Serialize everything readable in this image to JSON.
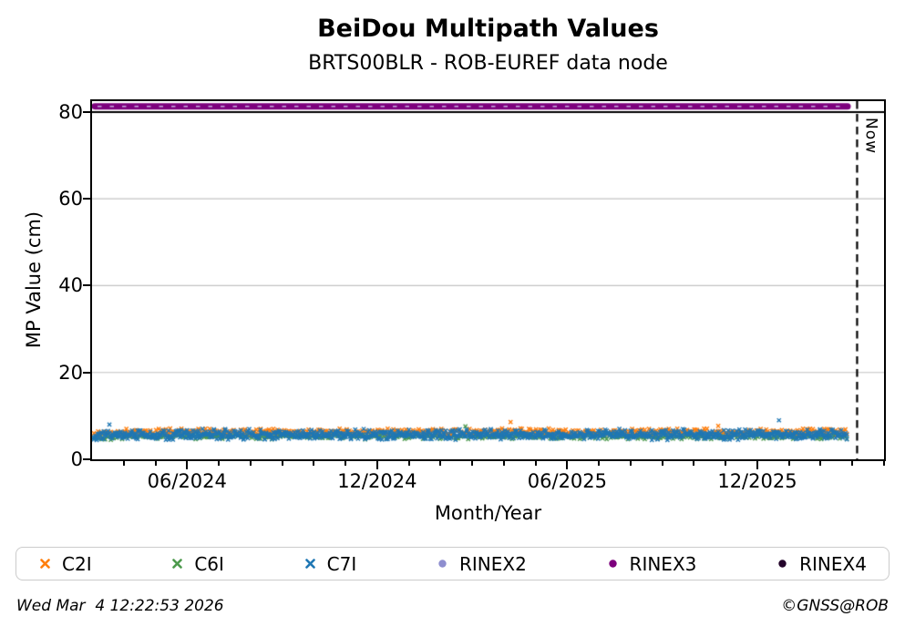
{
  "chart_data": {
    "type": "scatter",
    "title": "BeiDou Multipath Values",
    "subtitle": "BRTS00BLR - ROB-EUREF data node",
    "xlabel": "Month/Year",
    "ylabel": "MP Value (cm)",
    "ylim": [
      0,
      82.5
    ],
    "grid": "horizontal-only",
    "grid_color": "#c3c3c3",
    "grid_y_values": [
      20,
      40,
      60
    ],
    "y_ticks": [
      0,
      20,
      40,
      60,
      80
    ],
    "x_axis": {
      "months_span": 25,
      "start": "03/2024",
      "minor_tick_every_months": 1,
      "major_ticks": [
        {
          "month": 3,
          "label": "06/2024"
        },
        {
          "month": 9,
          "label": "12/2024"
        },
        {
          "month": 15,
          "label": "06/2025"
        },
        {
          "month": 21,
          "label": "12/2025"
        }
      ]
    },
    "separator_line": {
      "y": 80,
      "color": "#000000",
      "full_width": true
    },
    "now_marker": {
      "label": "Now",
      "month": 24.15,
      "style": "dashed",
      "color": "#000000"
    },
    "mp_series": [
      {
        "name": "C6I",
        "marker": "x",
        "color": "#4d9a4d",
        "center_cm": 5.3,
        "spread_cm": 0.45,
        "relative_density": 1,
        "start_month": 0,
        "end_month": 23.85
      },
      {
        "name": "C2I",
        "marker": "x",
        "color": "#ff7f0e",
        "center_cm": 6.35,
        "spread_cm": 0.5,
        "relative_density": 1,
        "start_month": 0,
        "end_month": 23.85
      },
      {
        "name": "C7I",
        "marker": "x",
        "color": "#1f77b4",
        "center_cm": 5.7,
        "spread_cm": 0.8,
        "relative_density": 2,
        "start_month": 0,
        "end_month": 23.85
      }
    ],
    "rinex_series": [
      {
        "name": "RINEX2",
        "marker": "circle",
        "color": "#8e8ecf",
        "level_cm": 81.3,
        "visible_as": "light dashes through RINEX3 band",
        "visible_dash_color": "#c5a9de"
      },
      {
        "name": "RINEX3",
        "marker": "circle",
        "color": "#7d007d",
        "level_cm": 81.3,
        "start_month": 0,
        "end_month": 23.85,
        "band_thickness_px": 7
      },
      {
        "name": "RINEX4",
        "marker": "circle",
        "color": "#24052b",
        "level_cm": null
      }
    ],
    "legend_order": [
      "C2I",
      "C6I",
      "C7I",
      "RINEX2",
      "RINEX3",
      "RINEX4"
    ]
  },
  "footer": {
    "timestamp": "Wed Mar  4 12:22:53 2026",
    "credit": "©GNSS@ROB"
  }
}
